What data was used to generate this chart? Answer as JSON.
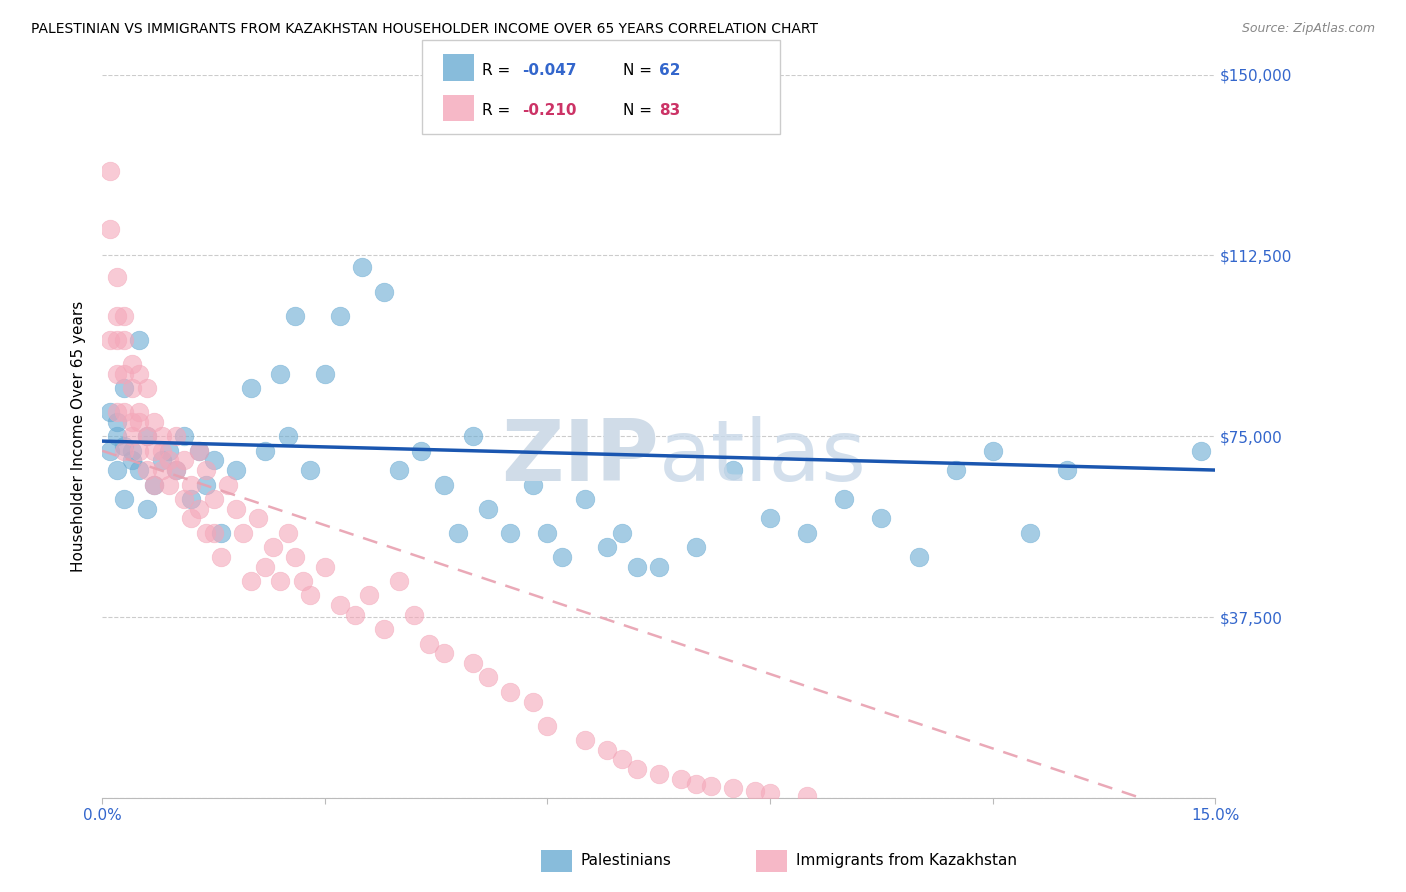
{
  "title": "PALESTINIAN VS IMMIGRANTS FROM KAZAKHSTAN HOUSEHOLDER INCOME OVER 65 YEARS CORRELATION CHART",
  "source": "Source: ZipAtlas.com",
  "ylabel": "Householder Income Over 65 years",
  "xlim": [
    0.0,
    0.15
  ],
  "ylim": [
    0,
    150000
  ],
  "yticks": [
    0,
    37500,
    75000,
    112500,
    150000
  ],
  "ytick_labels": [
    "",
    "$37,500",
    "$75,000",
    "$112,500",
    "$150,000"
  ],
  "xtick_labels": [
    "0.0%",
    "15.0%"
  ],
  "legend_label_blue": "Palestinians",
  "legend_label_pink": "Immigrants from Kazakhstan",
  "blue_color": "#6aabd2",
  "pink_color": "#f4a7b9",
  "line_blue_color": "#1a56b0",
  "line_pink_color": "#e8a0b0",
  "watermark_color": "#d0dce8",
  "blue_scatter_x": [
    0.001,
    0.001,
    0.002,
    0.002,
    0.002,
    0.003,
    0.003,
    0.003,
    0.004,
    0.004,
    0.005,
    0.005,
    0.006,
    0.006,
    0.007,
    0.008,
    0.009,
    0.01,
    0.011,
    0.012,
    0.013,
    0.014,
    0.015,
    0.016,
    0.018,
    0.02,
    0.022,
    0.024,
    0.025,
    0.026,
    0.028,
    0.03,
    0.032,
    0.035,
    0.038,
    0.04,
    0.043,
    0.046,
    0.048,
    0.05,
    0.052,
    0.055,
    0.058,
    0.06,
    0.062,
    0.065,
    0.068,
    0.07,
    0.072,
    0.075,
    0.08,
    0.085,
    0.09,
    0.095,
    0.1,
    0.105,
    0.11,
    0.115,
    0.12,
    0.125,
    0.13,
    0.148
  ],
  "blue_scatter_y": [
    72000,
    80000,
    75000,
    68000,
    78000,
    73000,
    62000,
    85000,
    70000,
    72000,
    95000,
    68000,
    75000,
    60000,
    65000,
    70000,
    72000,
    68000,
    75000,
    62000,
    72000,
    65000,
    70000,
    55000,
    68000,
    85000,
    72000,
    88000,
    75000,
    100000,
    68000,
    88000,
    100000,
    110000,
    105000,
    68000,
    72000,
    65000,
    55000,
    75000,
    60000,
    55000,
    65000,
    55000,
    50000,
    62000,
    52000,
    55000,
    48000,
    48000,
    52000,
    68000,
    58000,
    55000,
    62000,
    58000,
    50000,
    68000,
    72000,
    55000,
    68000,
    72000
  ],
  "pink_scatter_x": [
    0.001,
    0.001,
    0.001,
    0.002,
    0.002,
    0.002,
    0.002,
    0.002,
    0.003,
    0.003,
    0.003,
    0.003,
    0.003,
    0.004,
    0.004,
    0.004,
    0.004,
    0.005,
    0.005,
    0.005,
    0.005,
    0.006,
    0.006,
    0.006,
    0.007,
    0.007,
    0.007,
    0.008,
    0.008,
    0.008,
    0.009,
    0.009,
    0.01,
    0.01,
    0.011,
    0.011,
    0.012,
    0.012,
    0.013,
    0.013,
    0.014,
    0.014,
    0.015,
    0.015,
    0.016,
    0.017,
    0.018,
    0.019,
    0.02,
    0.021,
    0.022,
    0.023,
    0.024,
    0.025,
    0.026,
    0.027,
    0.028,
    0.03,
    0.032,
    0.034,
    0.036,
    0.038,
    0.04,
    0.042,
    0.044,
    0.046,
    0.05,
    0.052,
    0.055,
    0.058,
    0.06,
    0.065,
    0.068,
    0.07,
    0.072,
    0.075,
    0.078,
    0.08,
    0.082,
    0.085,
    0.088,
    0.09,
    0.095
  ],
  "pink_scatter_y": [
    130000,
    118000,
    95000,
    108000,
    100000,
    88000,
    95000,
    80000,
    95000,
    88000,
    80000,
    72000,
    100000,
    85000,
    78000,
    90000,
    75000,
    78000,
    88000,
    72000,
    80000,
    75000,
    85000,
    68000,
    72000,
    78000,
    65000,
    72000,
    68000,
    75000,
    70000,
    65000,
    68000,
    75000,
    62000,
    70000,
    65000,
    58000,
    72000,
    60000,
    55000,
    68000,
    62000,
    55000,
    50000,
    65000,
    60000,
    55000,
    45000,
    58000,
    48000,
    52000,
    45000,
    55000,
    50000,
    45000,
    42000,
    48000,
    40000,
    38000,
    42000,
    35000,
    45000,
    38000,
    32000,
    30000,
    28000,
    25000,
    22000,
    20000,
    15000,
    12000,
    10000,
    8000,
    6000,
    5000,
    4000,
    3000,
    2500,
    2000,
    1500,
    1000,
    500
  ]
}
